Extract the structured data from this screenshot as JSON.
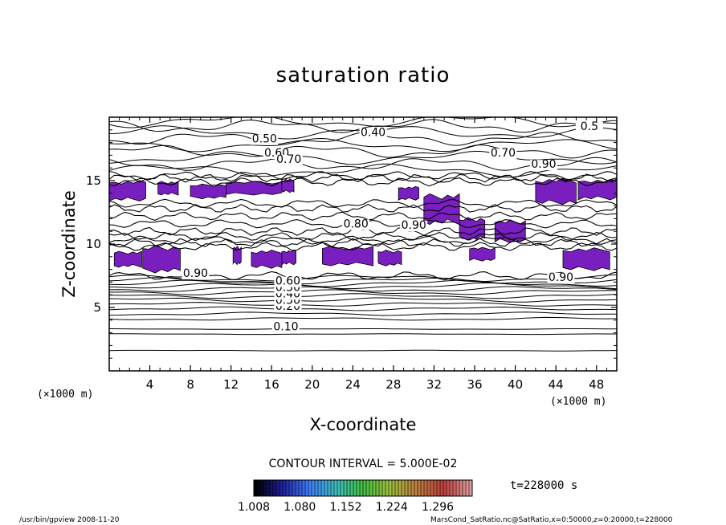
{
  "chart_data": {
    "type": "heatmap",
    "title": "saturation ratio",
    "xlabel": "X-coordinate",
    "ylabel": "Z-coordinate",
    "x_unit": "(×1000 m)",
    "y_unit": "(×1000 m)",
    "xlim": [
      0,
      50
    ],
    "ylim": [
      0,
      20
    ],
    "x_ticks": [
      4,
      8,
      12,
      16,
      20,
      24,
      28,
      32,
      36,
      40,
      44,
      48
    ],
    "y_ticks": [
      5,
      10,
      15
    ],
    "contour_interval_label": "CONTOUR INTERVAL = 5.000E-02",
    "contour_labels": [
      {
        "text": "0.10",
        "x": 17.4,
        "z": 3.2
      },
      {
        "text": "0.20",
        "x": 17.6,
        "z": 4.8
      },
      {
        "text": "0.30",
        "x": 17.6,
        "z": 5.3
      },
      {
        "text": "0.40",
        "x": 17.6,
        "z": 5.8
      },
      {
        "text": "0.50",
        "x": 17.6,
        "z": 6.3
      },
      {
        "text": "0.60",
        "x": 17.6,
        "z": 6.8
      },
      {
        "text": "0.90",
        "x": 8.5,
        "z": 7.4
      },
      {
        "text": "0.90",
        "x": 44.5,
        "z": 7.1
      },
      {
        "text": "0.80",
        "x": 24.3,
        "z": 11.3
      },
      {
        "text": "0.90",
        "x": 30.0,
        "z": 11.2
      },
      {
        "text": "0.40",
        "x": 26.0,
        "z": 18.5
      },
      {
        "text": "0.50",
        "x": 15.3,
        "z": 18.0
      },
      {
        "text": "0.60",
        "x": 16.5,
        "z": 16.9
      },
      {
        "text": "0.70",
        "x": 17.7,
        "z": 16.4
      },
      {
        "text": "0.70",
        "x": 38.8,
        "z": 16.9
      },
      {
        "text": "0.90",
        "x": 42.8,
        "z": 16.0
      },
      {
        "text": "0.5",
        "x": 47.3,
        "z": 19.0
      }
    ],
    "supersaturated_regions": [
      {
        "x0": 0.0,
        "x1": 3.6,
        "z0": 13.3,
        "z1": 15.1
      },
      {
        "x0": 4.8,
        "x1": 6.8,
        "z0": 13.8,
        "z1": 15.0
      },
      {
        "x0": 8.0,
        "x1": 11.5,
        "z0": 13.5,
        "z1": 14.8
      },
      {
        "x0": 11.5,
        "x1": 17.0,
        "z0": 13.8,
        "z1": 15.0
      },
      {
        "x0": 17.0,
        "x1": 18.2,
        "z0": 14.0,
        "z1": 15.2
      },
      {
        "x0": 28.5,
        "x1": 30.5,
        "z0": 13.4,
        "z1": 14.6
      },
      {
        "x0": 31.0,
        "x1": 34.5,
        "z0": 11.4,
        "z1": 14.1
      },
      {
        "x0": 34.5,
        "x1": 37.0,
        "z0": 10.2,
        "z1": 12.2
      },
      {
        "x0": 38.0,
        "x1": 41.0,
        "z0": 10.0,
        "z1": 12.0
      },
      {
        "x0": 42.0,
        "x1": 46.0,
        "z0": 13.0,
        "z1": 15.3
      },
      {
        "x0": 46.2,
        "x1": 50.0,
        "z0": 13.4,
        "z1": 15.2
      },
      {
        "x0": 0.5,
        "x1": 3.2,
        "z0": 8.1,
        "z1": 9.5
      },
      {
        "x0": 3.3,
        "x1": 7.0,
        "z0": 7.6,
        "z1": 10.0
      },
      {
        "x0": 12.2,
        "x1": 13.0,
        "z0": 8.3,
        "z1": 9.9
      },
      {
        "x0": 14.0,
        "x1": 17.0,
        "z0": 8.0,
        "z1": 9.6
      },
      {
        "x0": 17.0,
        "x1": 18.4,
        "z0": 8.3,
        "z1": 9.6
      },
      {
        "x0": 21.0,
        "x1": 26.0,
        "z0": 8.2,
        "z1": 9.9
      },
      {
        "x0": 26.5,
        "x1": 28.8,
        "z0": 8.2,
        "z1": 9.6
      },
      {
        "x0": 35.5,
        "x1": 38.0,
        "z0": 8.6,
        "z1": 9.8
      },
      {
        "x0": 44.7,
        "x1": 49.3,
        "z0": 7.8,
        "z1": 9.8
      }
    ],
    "colorbar": {
      "ticks": [
        1.008,
        1.08,
        1.152,
        1.224,
        1.296
      ],
      "tick_labels": [
        "1.008",
        "1.080",
        "1.152",
        "1.224",
        "1.296"
      ],
      "min": 1.008,
      "max": 1.35,
      "colors": [
        "#000000",
        "#1f1f9f",
        "#3f7fff",
        "#3fbfbf",
        "#3fbf3f",
        "#9fbf3f",
        "#bf7f3f",
        "#bf3f3f",
        "#df9f9f"
      ]
    },
    "fill_color": "#7a1fbf",
    "grid": false,
    "legend": "bottom-center"
  },
  "time_label": "t=228000 s",
  "footer": {
    "left": "/usr/bin/gpview   2008-11-20",
    "right": "MarsCond_SatRatio.nc@SatRatio,x=0:50000,z=0:20000,t=228000"
  }
}
